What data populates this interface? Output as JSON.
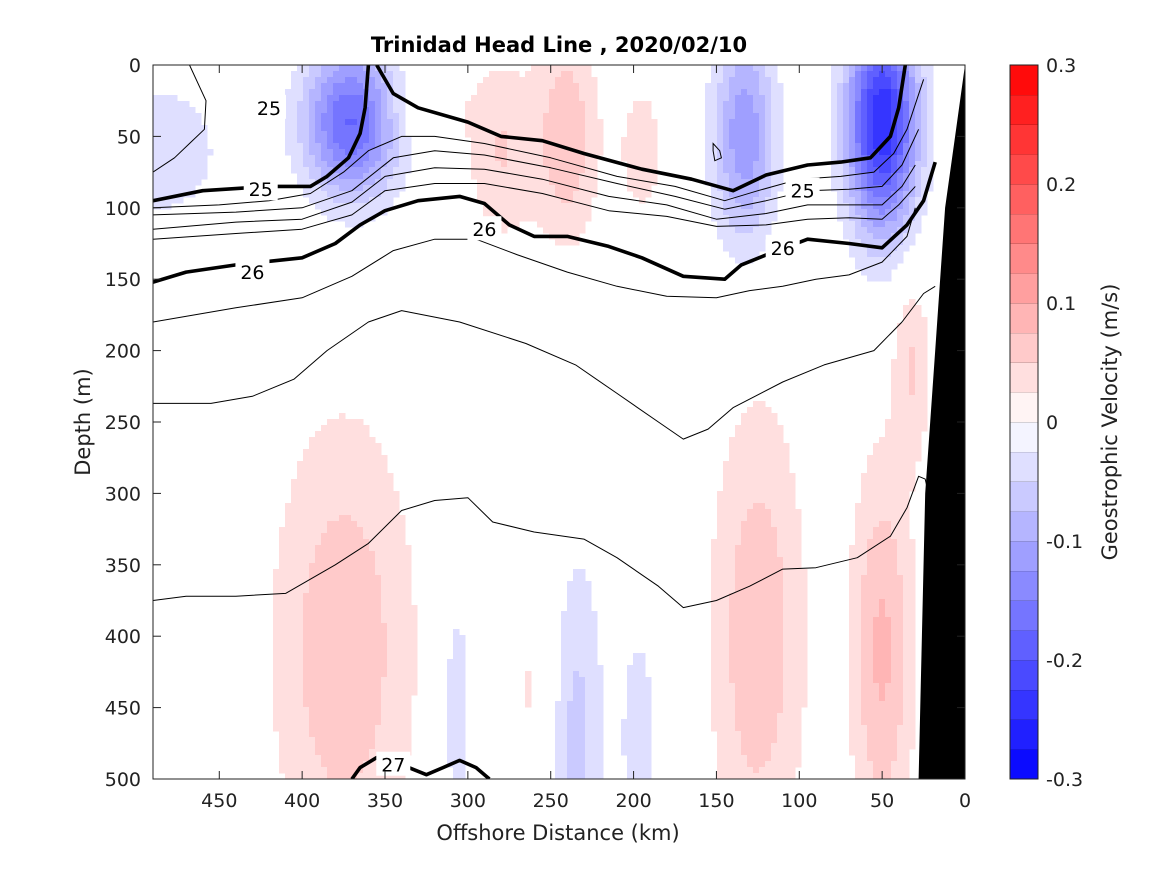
{
  "chart_data": {
    "type": "contour",
    "title": "Trinidad Head Line , 2020/02/10",
    "xlabel": "Offshore Distance (km)",
    "ylabel": "Depth (m)",
    "colorbar_label": "Geostrophic Velocity (m/s)",
    "xlim": [
      490,
      0
    ],
    "ylim": [
      0,
      500
    ],
    "x_ticks": [
      450,
      400,
      350,
      300,
      250,
      200,
      150,
      100,
      50,
      0
    ],
    "y_ticks": [
      0,
      50,
      100,
      150,
      200,
      250,
      300,
      350,
      400,
      450,
      500
    ],
    "colorbar_range": [
      -0.3,
      0.3
    ],
    "colorbar_ticks": [
      0.3,
      0.2,
      0.1,
      0,
      -0.1,
      -0.2,
      -0.3
    ],
    "colorbar_tick_labels": [
      "0.3",
      "0.2",
      "0.1",
      "0",
      "-0.1",
      "-0.2",
      "-0.3"
    ],
    "colormap": {
      "negative": "#0000ff",
      "zero": "#ffffff",
      "positive": "#ff0000",
      "levels": 24
    },
    "velocity_features": [
      {
        "x_km": 485,
        "depth_m": 60,
        "x_half_width_km": 45,
        "depth_half_height_m": 60,
        "velocity": -0.04
      },
      {
        "x_km": 370,
        "depth_m": 40,
        "x_half_width_km": 30,
        "depth_half_height_m": 55,
        "velocity": -0.18
      },
      {
        "x_km": 280,
        "depth_m": 60,
        "x_half_width_km": 22,
        "depth_half_height_m": 70,
        "velocity": 0.05
      },
      {
        "x_km": 240,
        "depth_m": 50,
        "x_half_width_km": 20,
        "depth_half_height_m": 80,
        "velocity": 0.07
      },
      {
        "x_km": 195,
        "depth_m": 60,
        "x_half_width_km": 15,
        "depth_half_height_m": 55,
        "velocity": 0.04
      },
      {
        "x_km": 133,
        "depth_m": 50,
        "x_half_width_km": 20,
        "depth_half_height_m": 80,
        "velocity": -0.12
      },
      {
        "x_km": 50,
        "depth_m": 40,
        "x_half_width_km": 22,
        "depth_half_height_m": 80,
        "velocity": -0.25
      },
      {
        "x_km": 100,
        "depth_m": 30,
        "x_half_width_km": 8,
        "depth_half_height_m": 30,
        "velocity": 0.03
      },
      {
        "x_km": 330,
        "depth_m": 30,
        "x_half_width_km": 30,
        "depth_half_height_m": 30,
        "velocity": 0.03
      },
      {
        "x_km": 375,
        "depth_m": 410,
        "x_half_width_km": 45,
        "depth_half_height_m": 170,
        "velocity": 0.07
      },
      {
        "x_km": 307,
        "depth_m": 450,
        "x_half_width_km": 12,
        "depth_half_height_m": 110,
        "velocity": -0.04
      },
      {
        "x_km": 260,
        "depth_m": 440,
        "x_half_width_km": 18,
        "depth_half_height_m": 140,
        "velocity": 0.03
      },
      {
        "x_km": 235,
        "depth_m": 470,
        "x_half_width_km": 18,
        "depth_half_height_m": 140,
        "velocity": -0.06
      },
      {
        "x_km": 197,
        "depth_m": 470,
        "x_half_width_km": 12,
        "depth_half_height_m": 90,
        "velocity": -0.04
      },
      {
        "x_km": 125,
        "depth_m": 400,
        "x_half_width_km": 30,
        "depth_half_height_m": 170,
        "velocity": 0.07
      },
      {
        "x_km": 50,
        "depth_m": 410,
        "x_half_width_km": 20,
        "depth_half_height_m": 140,
        "velocity": 0.08
      },
      {
        "x_km": 32,
        "depth_m": 210,
        "x_half_width_km": 12,
        "depth_half_height_m": 70,
        "velocity": 0.05
      }
    ],
    "contours": [
      {
        "level": 24.9,
        "bold": false,
        "points": [
          [
            490,
            75
          ],
          [
            477,
            65
          ],
          [
            468,
            55
          ],
          [
            459,
            45
          ],
          [
            458,
            25
          ],
          [
            468,
            0
          ]
        ]
      },
      {
        "level": 25.0,
        "bold": true,
        "label": "25",
        "label_points": [
          [
            425,
            87
          ],
          [
            420,
            30
          ],
          [
            98,
            88
          ]
        ],
        "points": [
          [
            490,
            95
          ],
          [
            460,
            88
          ],
          [
            420,
            85
          ],
          [
            395,
            85
          ],
          [
            385,
            78
          ],
          [
            372,
            65
          ],
          [
            365,
            48
          ],
          [
            362,
            30
          ],
          [
            360,
            0
          ]
        ]
      },
      {
        "level": 25.0,
        "bold": true,
        "points": [
          [
            355,
            0
          ],
          [
            345,
            20
          ],
          [
            330,
            30
          ],
          [
            300,
            40
          ],
          [
            280,
            50
          ],
          [
            255,
            53
          ],
          [
            230,
            62
          ],
          [
            195,
            73
          ],
          [
            165,
            80
          ],
          [
            140,
            88
          ],
          [
            120,
            77
          ],
          [
            95,
            70
          ],
          [
            75,
            68
          ],
          [
            57,
            65
          ],
          [
            45,
            50
          ],
          [
            40,
            30
          ],
          [
            36,
            0
          ]
        ]
      },
      {
        "level": 25.1,
        "bold": false,
        "points": [
          [
            490,
            100
          ],
          [
            450,
            98
          ],
          [
            420,
            95
          ],
          [
            395,
            90
          ],
          [
            375,
            75
          ],
          [
            360,
            60
          ],
          [
            340,
            50
          ],
          [
            320,
            50
          ],
          [
            290,
            55
          ],
          [
            250,
            65
          ],
          [
            210,
            78
          ],
          [
            175,
            85
          ],
          [
            145,
            95
          ],
          [
            125,
            88
          ],
          [
            100,
            80
          ],
          [
            75,
            78
          ],
          [
            55,
            75
          ],
          [
            43,
            62
          ],
          [
            35,
            45
          ],
          [
            25,
            10
          ]
        ]
      },
      {
        "level": 25.25,
        "bold": false,
        "points": [
          [
            490,
            105
          ],
          [
            440,
            103
          ],
          [
            400,
            100
          ],
          [
            370,
            88
          ],
          [
            345,
            65
          ],
          [
            320,
            60
          ],
          [
            290,
            63
          ],
          [
            250,
            72
          ],
          [
            210,
            83
          ],
          [
            175,
            92
          ],
          [
            145,
            101
          ],
          [
            120,
            95
          ],
          [
            95,
            88
          ],
          [
            70,
            87
          ],
          [
            50,
            85
          ],
          [
            38,
            70
          ],
          [
            28,
            45
          ]
        ]
      },
      {
        "level": 25.5,
        "bold": false,
        "points": [
          [
            490,
            115
          ],
          [
            440,
            110
          ],
          [
            400,
            108
          ],
          [
            370,
            96
          ],
          [
            350,
            78
          ],
          [
            320,
            72
          ],
          [
            290,
            73
          ],
          [
            255,
            80
          ],
          [
            215,
            92
          ],
          [
            180,
            98
          ],
          [
            150,
            108
          ],
          [
            120,
            104
          ],
          [
            95,
            98
          ],
          [
            70,
            98
          ],
          [
            50,
            98
          ],
          [
            38,
            85
          ],
          [
            30,
            70
          ]
        ]
      },
      {
        "level": 25.75,
        "bold": false,
        "points": [
          [
            490,
            122
          ],
          [
            440,
            118
          ],
          [
            400,
            115
          ],
          [
            370,
            105
          ],
          [
            350,
            88
          ],
          [
            320,
            83
          ],
          [
            290,
            83
          ],
          [
            255,
            90
          ],
          [
            215,
            102
          ],
          [
            180,
            106
          ],
          [
            150,
            113
          ],
          [
            120,
            112
          ],
          [
            95,
            108
          ],
          [
            70,
            107
          ],
          [
            50,
            108
          ],
          [
            40,
            98
          ],
          [
            30,
            85
          ]
        ]
      },
      {
        "level": 26.0,
        "bold": true,
        "label": "26",
        "label_points": [
          [
            430,
            145
          ],
          [
            290,
            115
          ],
          [
            110,
            128
          ]
        ],
        "points": [
          [
            490,
            152
          ],
          [
            470,
            145
          ],
          [
            440,
            140
          ],
          [
            400,
            135
          ],
          [
            380,
            125
          ],
          [
            365,
            112
          ],
          [
            350,
            102
          ],
          [
            330,
            95
          ],
          [
            305,
            92
          ],
          [
            290,
            97
          ],
          [
            275,
            112
          ],
          [
            260,
            120
          ],
          [
            240,
            120
          ],
          [
            215,
            127
          ],
          [
            195,
            135
          ],
          [
            170,
            148
          ],
          [
            145,
            150
          ],
          [
            135,
            140
          ],
          [
            120,
            133
          ],
          [
            95,
            122
          ],
          [
            70,
            125
          ],
          [
            50,
            128
          ],
          [
            35,
            112
          ],
          [
            25,
            95
          ],
          [
            18,
            68
          ]
        ]
      },
      {
        "level": 26.2,
        "bold": false,
        "points": [
          [
            490,
            180
          ],
          [
            440,
            170
          ],
          [
            400,
            163
          ],
          [
            370,
            148
          ],
          [
            345,
            130
          ],
          [
            320,
            122
          ],
          [
            295,
            122
          ],
          [
            270,
            133
          ],
          [
            240,
            145
          ],
          [
            210,
            155
          ],
          [
            180,
            162
          ],
          [
            150,
            163
          ],
          [
            130,
            158
          ],
          [
            110,
            155
          ],
          [
            90,
            150
          ],
          [
            70,
            147
          ],
          [
            50,
            138
          ],
          [
            35,
            120
          ],
          [
            30,
            100
          ]
        ]
      },
      {
        "level": 26.4,
        "bold": false,
        "points": [
          [
            490,
            237
          ],
          [
            455,
            237
          ],
          [
            430,
            232
          ],
          [
            405,
            220
          ],
          [
            385,
            200
          ],
          [
            360,
            180
          ],
          [
            340,
            172
          ],
          [
            305,
            180
          ],
          [
            265,
            195
          ],
          [
            235,
            210
          ],
          [
            210,
            230
          ],
          [
            185,
            250
          ],
          [
            170,
            262
          ],
          [
            155,
            255
          ],
          [
            140,
            240
          ],
          [
            110,
            222
          ],
          [
            85,
            210
          ],
          [
            55,
            200
          ],
          [
            38,
            180
          ],
          [
            25,
            160
          ],
          [
            18,
            155
          ]
        ]
      },
      {
        "level": 26.6,
        "bold": false,
        "points": [
          [
            490,
            375
          ],
          [
            470,
            372
          ],
          [
            440,
            372
          ],
          [
            410,
            370
          ],
          [
            380,
            350
          ],
          [
            360,
            335
          ],
          [
            340,
            312
          ],
          [
            320,
            305
          ],
          [
            300,
            303
          ],
          [
            285,
            320
          ],
          [
            260,
            327
          ],
          [
            230,
            332
          ],
          [
            210,
            345
          ],
          [
            185,
            365
          ],
          [
            170,
            380
          ],
          [
            150,
            375
          ],
          [
            130,
            365
          ],
          [
            110,
            353
          ],
          [
            90,
            352
          ],
          [
            65,
            345
          ],
          [
            45,
            330
          ],
          [
            35,
            310
          ],
          [
            28,
            288
          ],
          [
            24,
            290
          ],
          [
            22,
            300
          ],
          [
            18,
            310
          ]
        ]
      },
      {
        "level": 27.0,
        "bold": true,
        "label": "27",
        "label_points": [
          [
            345,
            490
          ]
        ],
        "points": [
          [
            370,
            500
          ],
          [
            365,
            492
          ],
          [
            355,
            485
          ],
          [
            340,
            490
          ],
          [
            325,
            497
          ],
          [
            315,
            492
          ],
          [
            305,
            487
          ],
          [
            295,
            492
          ],
          [
            287,
            500
          ]
        ]
      }
    ],
    "small_closed_contour": {
      "points": [
        [
          152,
          55
        ],
        [
          148,
          60
        ],
        [
          147,
          65
        ],
        [
          151,
          67
        ],
        [
          152,
          60
        ]
      ]
    },
    "bathymetry": {
      "color": "#000000",
      "points": [
        [
          28,
          500
        ],
        [
          24,
          300
        ],
        [
          18,
          200
        ],
        [
          12,
          100
        ],
        [
          6,
          50
        ],
        [
          0,
          0
        ],
        [
          0,
          500
        ]
      ]
    }
  }
}
